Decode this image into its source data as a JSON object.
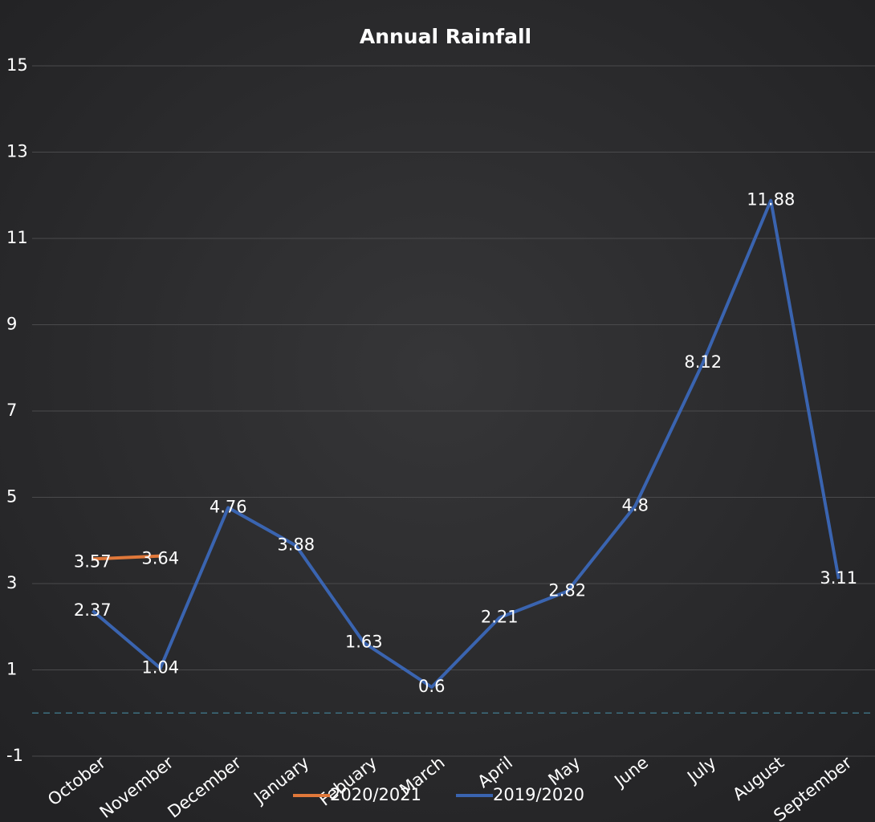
{
  "chart_data": {
    "type": "line",
    "title": "Annual Rainfall",
    "categories": [
      "October",
      "November",
      "December",
      "January",
      "Febuary",
      "March",
      "April",
      "May",
      "June",
      "July",
      "August",
      "September"
    ],
    "series": [
      {
        "name": "2020/2021",
        "color": "#e0783a",
        "values": [
          3.57,
          3.64,
          null,
          null,
          null,
          null,
          null,
          null,
          null,
          null,
          null,
          null
        ]
      },
      {
        "name": "2019/2020",
        "color": "#3a64b0",
        "values": [
          2.37,
          1.04,
          4.76,
          3.88,
          1.63,
          0.6,
          2.21,
          2.82,
          4.8,
          8.12,
          11.88,
          3.11
        ]
      }
    ],
    "ylim": [
      -1,
      15
    ],
    "yticks": [
      -1,
      1,
      3,
      5,
      7,
      9,
      11,
      13,
      15
    ],
    "grid": true,
    "legend": "bottom"
  }
}
